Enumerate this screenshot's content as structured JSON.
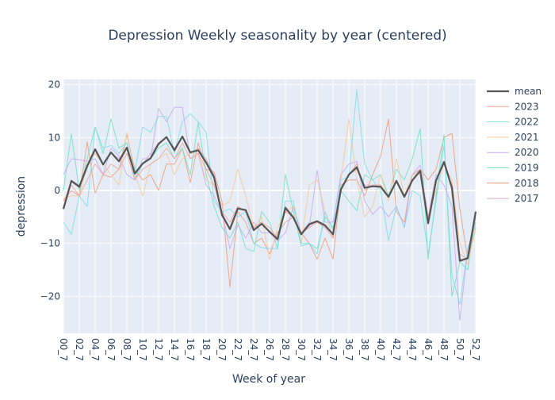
{
  "chart_data": {
    "type": "line",
    "title": "Depression Weekly seasonality by year (centered)",
    "xlabel": "Week of year",
    "ylabel": "depression",
    "ylim": [
      -27,
      21
    ],
    "y_ticks": [
      -20,
      -10,
      0,
      10,
      20
    ],
    "x_tick_labels": [
      "00_7",
      "02_7",
      "04_7",
      "06_7",
      "08_7",
      "10_7",
      "12_7",
      "14_7",
      "16_7",
      "18_7",
      "20_7",
      "22_7",
      "24_7",
      "26_7",
      "28_7",
      "30_7",
      "32_7",
      "34_7",
      "36_7",
      "38_7",
      "40_7",
      "42_7",
      "44_7",
      "46_7",
      "48_7",
      "50_7",
      "52_7"
    ],
    "legend_position": "right",
    "colors": {
      "mean": "#555555",
      "2023": "#f2a49a",
      "2022": "#7fdce6",
      "2021": "#f5c99a",
      "2020": "#c9a7f2",
      "2019": "#6ee0c0",
      "2018": "#ee9a7a",
      "2017": "#d9a7c9"
    },
    "series": [
      {
        "name": "mean",
        "values": [
          -3.5,
          1.8,
          0.7,
          4.6,
          7.8,
          4.9,
          7.2,
          5.5,
          8.1,
          3.2,
          5.1,
          6.1,
          8.8,
          10.1,
          7.6,
          10.2,
          7.2,
          7.6,
          5.3,
          2.5,
          -4.6,
          -7.3,
          -3.4,
          -3.7,
          -7.5,
          -6.3,
          -7.8,
          -9.2,
          -3.3,
          -5.1,
          -8.3,
          -6.4,
          -5.8,
          -6.6,
          -8.3,
          0.2,
          3.0,
          4.4,
          0.5,
          0.8,
          0.7,
          -1.2,
          1.8,
          -1.2,
          1.9,
          3.7,
          -6.2,
          1.9,
          5.4,
          0.5,
          -13.3,
          -12.8,
          -4.0
        ]
      },
      {
        "name": "2023",
        "values": [
          -2,
          1,
          -1,
          2,
          5,
          3,
          5,
          4,
          7,
          2,
          4,
          5,
          6,
          8,
          6,
          9,
          6,
          7,
          4,
          1,
          -4,
          -6,
          -3,
          -4,
          -7,
          -6,
          -7,
          -9,
          -4,
          -5,
          -8,
          -7,
          -6,
          -7,
          -9,
          0,
          3,
          5,
          0,
          1,
          1,
          -1,
          2,
          -1,
          2,
          4,
          -5,
          2,
          5,
          1,
          -12,
          -13,
          -4
        ]
      },
      {
        "name": "2022",
        "values": [
          -6,
          -8.3,
          -1,
          -3,
          12,
          8,
          8.5,
          7,
          9,
          3.5,
          12,
          11,
          14,
          14,
          7,
          13,
          14.5,
          13,
          11,
          -2,
          -4,
          -3.5,
          -5,
          -4,
          -10,
          -10.8,
          -11,
          -11,
          -2,
          -2,
          -10,
          -10,
          -12,
          -4,
          -7.5,
          2,
          2.5,
          19,
          5,
          2,
          0,
          -9.5,
          -3,
          -7,
          0,
          -1,
          -12,
          -2,
          8.5,
          -16,
          -21.5,
          -11,
          -6.5
        ]
      },
      {
        "name": "2021",
        "values": [
          -1.5,
          -1,
          -1,
          5,
          7,
          5,
          3,
          1,
          11,
          3,
          -1,
          5,
          6,
          7,
          3,
          6,
          7,
          7,
          2,
          1,
          -3,
          -2,
          4,
          -1,
          -7,
          -5,
          -13,
          -7,
          -4,
          -3,
          -10,
          1,
          2,
          -4,
          -9,
          2,
          13.5,
          2,
          -5,
          -3,
          3,
          -2,
          6,
          -1,
          3,
          3,
          -5,
          0,
          5,
          2,
          -10,
          -14,
          -7
        ]
      },
      {
        "name": "2020",
        "values": [
          3,
          6,
          5.8,
          5.5,
          6,
          3,
          8,
          6.5,
          3,
          2,
          6,
          6,
          15.5,
          13,
          15.7,
          15.7,
          6,
          7,
          1,
          -1,
          -4,
          -11,
          -6.5,
          -9,
          -6,
          -8,
          -8,
          -9.5,
          -8,
          -3,
          -8,
          -7,
          3.8,
          -6,
          -6,
          3,
          5,
          5.5,
          -2,
          -4.5,
          -3,
          -5,
          -3,
          -7,
          3,
          4.8,
          -5,
          3,
          1,
          -3,
          -24.5,
          -11,
          -6
        ]
      },
      {
        "name": "2019",
        "values": [
          0,
          10.7,
          0,
          6,
          12,
          7,
          13.5,
          8,
          9,
          2,
          5,
          6,
          8,
          9,
          6,
          8,
          3,
          12.8,
          3,
          -3,
          -7,
          -9,
          -6,
          -11,
          -11.5,
          -4,
          -6,
          -11,
          3,
          -4,
          -10.5,
          -10,
          -11,
          -5,
          -7,
          0,
          -2,
          -3.8,
          3,
          2,
          3,
          -1,
          4,
          2,
          6,
          11.7,
          -13,
          -1,
          10.5,
          -20,
          -13.5,
          -15,
          -5
        ]
      },
      {
        "name": "2018",
        "values": [
          -2,
          0,
          -1,
          9.2,
          -0.5,
          3,
          2.5,
          4,
          10.5,
          4,
          2,
          3,
          0,
          5,
          5,
          8,
          1.5,
          9,
          4,
          3.5,
          -2,
          -18.3,
          -4,
          -6,
          -10,
          -9,
          -12,
          -8,
          -6,
          -5,
          -8,
          -10,
          -13,
          -9,
          -13,
          1,
          2,
          2,
          -1,
          3,
          6.5,
          13.5,
          -4,
          -6,
          3,
          4,
          2,
          4,
          10,
          10.8,
          -3.5,
          -13,
          -7
        ]
      },
      {
        "name": "2017",
        "values": [
          -3,
          2,
          1,
          5,
          7,
          5,
          7,
          6,
          8,
          3,
          5,
          7,
          9,
          10,
          8,
          10,
          7,
          8,
          6,
          3,
          -5,
          -7,
          -3,
          -4,
          -7,
          -6,
          -8,
          -9,
          -3,
          -5,
          -8,
          -6,
          -6,
          -7,
          -8,
          0,
          3,
          4,
          1,
          1,
          1,
          -1,
          2,
          -1,
          2,
          4,
          -6,
          2,
          5,
          1,
          -13,
          -13,
          -4
        ]
      }
    ]
  }
}
